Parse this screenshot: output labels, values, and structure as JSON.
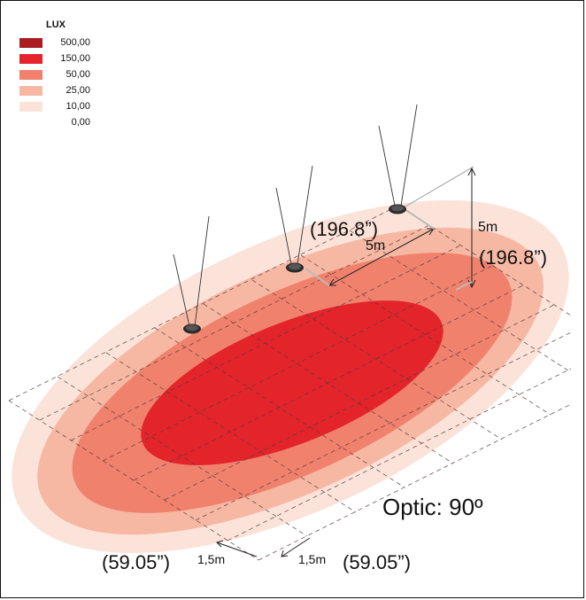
{
  "legend": {
    "title": "LUX",
    "items": [
      {
        "value": "500,00",
        "color": "#a81c22"
      },
      {
        "value": "150,00",
        "color": "#e3242b"
      },
      {
        "value": "50,00",
        "color": "#f0826d"
      },
      {
        "value": "25,00",
        "color": "#f6b8a3"
      },
      {
        "value": "10,00",
        "color": "#fce3da"
      },
      {
        "value": "0,00",
        "color": "#ffffff"
      }
    ]
  },
  "dimensions": {
    "height_m": "5m",
    "height_in": "(196.8”)",
    "spacing_m": "5m",
    "spacing_in": "(196.8”)",
    "grid_a_m": "1,5m",
    "grid_a_in": "(59.05”)",
    "grid_b_m": "1,5m",
    "grid_b_in": "(59.05”)"
  },
  "optic_label": "Optic: 90º"
}
